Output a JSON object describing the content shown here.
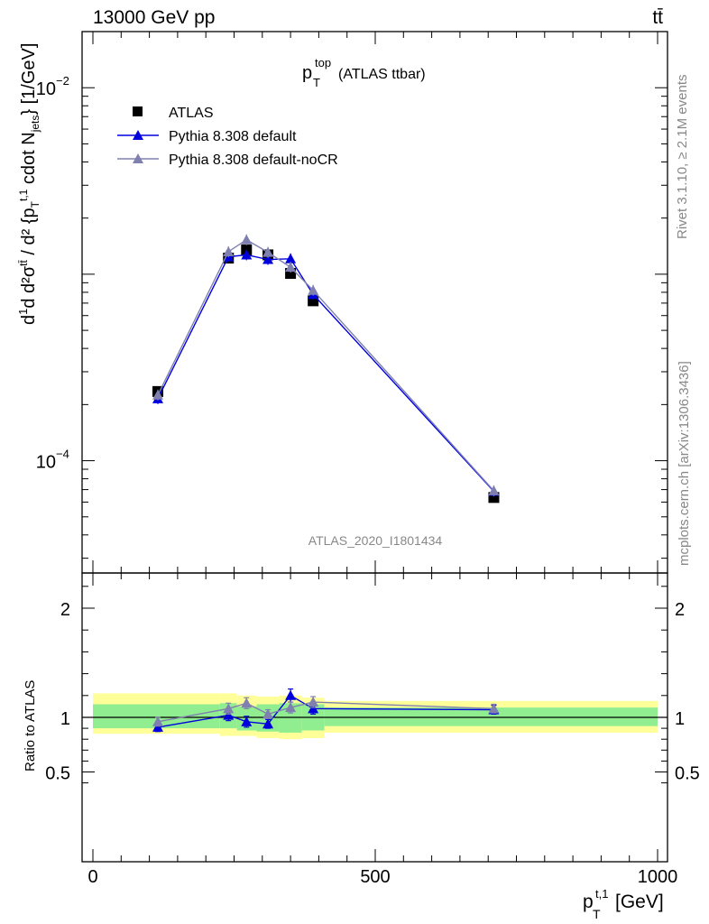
{
  "header": {
    "left": "13000 GeV pp",
    "right": "tt̄"
  },
  "plot_title": {
    "main": "p",
    "sub": "T",
    "sup": "top",
    "suffix": "(ATLAS ttbar)"
  },
  "side": {
    "rivet": "Rivet 3.1.10, ≥ 2.1M events",
    "mcplots": "mcplots.cern.ch [arXiv:1306.3436]"
  },
  "watermark": "ATLAS_2020_I1801434",
  "legend": [
    {
      "label": "ATLAS",
      "color": "#000000",
      "marker": "square"
    },
    {
      "label": "Pythia 8.308 default",
      "color": "#0000dd",
      "marker": "triangle"
    },
    {
      "label": "Pythia 8.308 default-noCR",
      "color": "#8080b0",
      "marker": "triangle"
    }
  ],
  "colors": {
    "band_inner": "#90ee90",
    "band_outer": "#ffff99",
    "default": "#0000dd",
    "nocr": "#8080b0"
  },
  "chart_data": {
    "type": "scatter",
    "x_ticks": [
      0,
      500,
      1000
    ],
    "x_tick_labels": [
      "0",
      "500",
      "1000"
    ],
    "xlim": [
      -25,
      1025
    ],
    "main": {
      "yscale": "log",
      "ylim": [
        2.5e-05,
        0.02
      ],
      "y_tick_labels": [
        {
          "value": 0.01,
          "base": "10",
          "exp": "−2"
        },
        {
          "value": 0.0001,
          "base": "10",
          "exp": "−4"
        }
      ],
      "series": [
        {
          "name": "ATLAS",
          "x": [
            115,
            240,
            272,
            310,
            350,
            390,
            710
          ],
          "y": [
            0.000235,
            0.00122,
            0.00135,
            0.00127,
            0.00101,
            0.00072,
            6.35e-05
          ]
        },
        {
          "name": "Pythia 8.308 default",
          "x": [
            115,
            240,
            272,
            310,
            350,
            390,
            710
          ],
          "y": [
            0.000215,
            0.00124,
            0.00127,
            0.0012,
            0.00121,
            0.00078,
            6.85e-05
          ]
        },
        {
          "name": "Pythia 8.308 default-noCR",
          "x": [
            115,
            240,
            272,
            310,
            350,
            390,
            710
          ],
          "y": [
            0.000225,
            0.00132,
            0.00153,
            0.00131,
            0.00109,
            0.00082,
            6.9e-05
          ]
        }
      ]
    },
    "ratio": {
      "ylim": [
        0.36,
        2.35
      ],
      "y_ticks": [
        0.5,
        1,
        2
      ],
      "y_tick_labels": [
        "0.5",
        "1",
        "2"
      ],
      "bins": [
        [
          0,
          225
        ],
        [
          225,
          255
        ],
        [
          255,
          290
        ],
        [
          290,
          330
        ],
        [
          330,
          370
        ],
        [
          370,
          410
        ],
        [
          410,
          1000
        ]
      ],
      "band_inner": [
        [
          0.9,
          1.12
        ],
        [
          0.9,
          1.13
        ],
        [
          0.88,
          1.1
        ],
        [
          0.87,
          1.12
        ],
        [
          0.86,
          1.13
        ],
        [
          0.88,
          1.12
        ],
        [
          0.92,
          1.09
        ]
      ],
      "band_outer": [
        [
          0.85,
          1.22
        ],
        [
          0.83,
          1.22
        ],
        [
          0.83,
          1.2
        ],
        [
          0.81,
          1.19
        ],
        [
          0.8,
          1.2
        ],
        [
          0.81,
          1.18
        ],
        [
          0.86,
          1.15
        ]
      ],
      "series": [
        {
          "name": "Pythia 8.308 default",
          "x": [
            115,
            240,
            272,
            310,
            350,
            390,
            710
          ],
          "y": [
            0.91,
            1.02,
            0.96,
            0.94,
            1.2,
            1.08,
            1.07
          ],
          "err": [
            0.04,
            0.05,
            0.05,
            0.04,
            0.06,
            0.05,
            0.04
          ]
        },
        {
          "name": "Pythia 8.308 default-noCR",
          "x": [
            115,
            240,
            272,
            310,
            350,
            390,
            710
          ],
          "y": [
            0.96,
            1.08,
            1.13,
            1.03,
            1.09,
            1.14,
            1.08
          ],
          "err": [
            0.04,
            0.05,
            0.05,
            0.04,
            0.05,
            0.05,
            0.04
          ]
        }
      ]
    },
    "xlabel": {
      "main": "p",
      "sub": "T",
      "sup": "t,1",
      "unit": "[GeV]"
    },
    "ylabel_main": "d1dσd d²σ^tt̄ / d²{p_T^t,1 cdot N_jets} [1/GeV]",
    "ylabel_ratio": "Ratio to ATLAS"
  }
}
